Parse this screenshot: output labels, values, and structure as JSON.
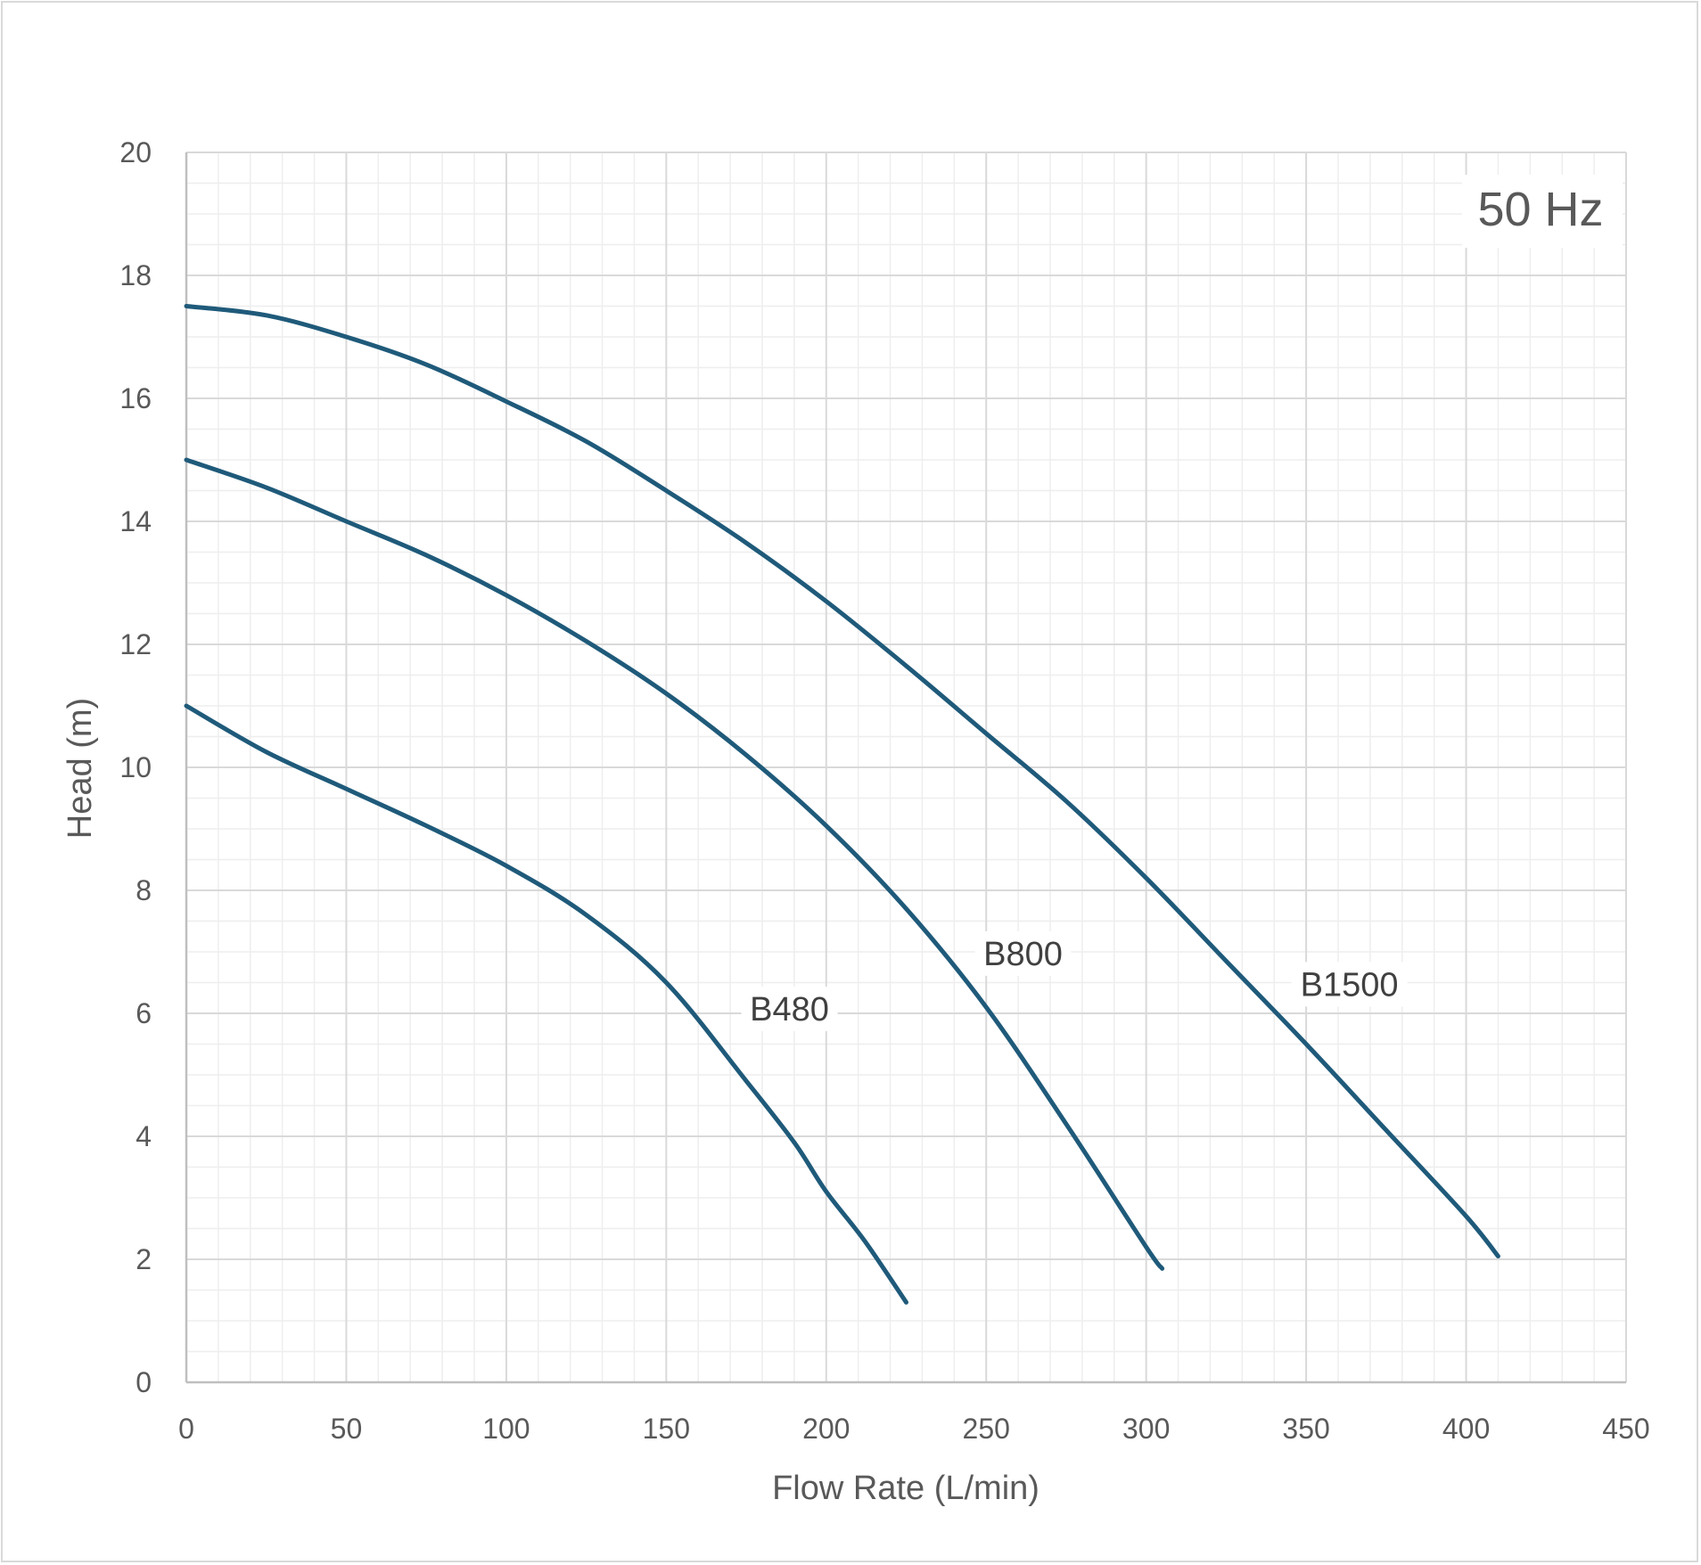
{
  "chart_data": {
    "type": "line",
    "annotation": "50 Hz",
    "xlabel": "Flow Rate (L/min)",
    "ylabel": "Head (m)",
    "xlim": [
      0,
      450
    ],
    "ylim": [
      0,
      20
    ],
    "x_ticks": [
      "0",
      "50",
      "100",
      "150",
      "200",
      "250",
      "300",
      "350",
      "400",
      "450"
    ],
    "y_ticks": [
      "0",
      "2",
      "4",
      "6",
      "8",
      "10",
      "12",
      "14",
      "16",
      "18",
      "20"
    ],
    "grid": true,
    "line_color": "#1f5a7a",
    "series": [
      {
        "name": "B480",
        "x": [
          0,
          25,
          50,
          75,
          100,
          125,
          150,
          175,
          190,
          200,
          212,
          225
        ],
        "y": [
          11.0,
          10.25,
          9.65,
          9.05,
          8.4,
          7.6,
          6.5,
          4.9,
          3.9,
          3.1,
          2.3,
          1.3
        ]
      },
      {
        "name": "B800",
        "x": [
          0,
          25,
          50,
          75,
          100,
          125,
          150,
          175,
          200,
          225,
          250,
          275,
          300,
          305
        ],
        "y": [
          15.0,
          14.55,
          14.0,
          13.45,
          12.8,
          12.05,
          11.2,
          10.2,
          9.05,
          7.7,
          6.1,
          4.2,
          2.2,
          1.85
        ]
      },
      {
        "name": "B1500",
        "x": [
          0,
          25,
          50,
          75,
          100,
          125,
          150,
          175,
          200,
          225,
          250,
          275,
          300,
          325,
          350,
          375,
          400,
          410
        ],
        "y": [
          17.5,
          17.35,
          17.0,
          16.55,
          15.95,
          15.3,
          14.5,
          13.65,
          12.7,
          11.65,
          10.55,
          9.45,
          8.2,
          6.85,
          5.5,
          4.1,
          2.7,
          2.05
        ]
      }
    ]
  }
}
